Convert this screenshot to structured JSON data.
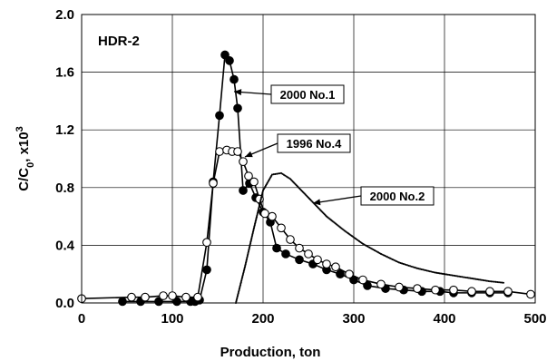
{
  "chart_data": {
    "type": "scatter",
    "panel_label": "HDR-2",
    "xlabel": "Production, ton",
    "ylabel_main": "C/C",
    "ylabel_sub": "0",
    "ylabel_tail": ", x10",
    "ylabel_sup": "3",
    "xlim": [
      0,
      500
    ],
    "ylim": [
      0,
      2.0
    ],
    "x_ticks": [
      "0",
      "100",
      "200",
      "300",
      "400",
      "500"
    ],
    "y_ticks": [
      "0.0",
      "0.4",
      "0.8",
      "1.2",
      "1.6",
      "2.0"
    ],
    "grid": true,
    "legend": "none",
    "annotations": [
      {
        "text": "2000 No.1",
        "series": 0
      },
      {
        "text": "1996 No.4",
        "series": 1
      },
      {
        "text": "2000 No.2",
        "series": 2
      }
    ],
    "series": [
      {
        "name": "2000 No.1",
        "marker": "filled-circle",
        "line": true,
        "color": "#000000",
        "x": [
          45,
          65,
          85,
          105,
          120,
          125,
          130,
          138,
          145,
          152,
          158,
          163,
          168,
          172,
          178,
          185,
          192,
          200,
          208,
          215,
          225,
          240,
          255,
          270,
          285,
          300,
          315,
          335,
          355,
          375,
          395,
          410,
          430,
          450,
          470
        ],
        "y": [
          0.01,
          0.01,
          0.01,
          0.01,
          0.01,
          0.01,
          0.02,
          0.23,
          0.84,
          1.3,
          1.72,
          1.68,
          1.55,
          1.35,
          0.78,
          0.83,
          0.73,
          0.63,
          0.56,
          0.38,
          0.34,
          0.3,
          0.27,
          0.23,
          0.2,
          0.16,
          0.12,
          0.1,
          0.09,
          0.08,
          0.08,
          0.07,
          0.07,
          0.07,
          0.07
        ]
      },
      {
        "name": "1996 No.4",
        "marker": "open-circle",
        "line": true,
        "color": "#000000",
        "x": [
          0,
          55,
          70,
          90,
          100,
          115,
          128,
          138,
          145,
          152,
          160,
          166,
          172,
          178,
          184,
          190,
          196,
          202,
          210,
          220,
          230,
          240,
          250,
          260,
          270,
          280,
          295,
          310,
          330,
          350,
          370,
          390,
          410,
          430,
          450,
          470,
          495
        ],
        "y": [
          0.03,
          0.04,
          0.04,
          0.05,
          0.05,
          0.04,
          0.04,
          0.42,
          0.83,
          1.05,
          1.06,
          1.05,
          1.05,
          0.98,
          0.88,
          0.84,
          0.72,
          0.62,
          0.6,
          0.52,
          0.44,
          0.38,
          0.34,
          0.3,
          0.27,
          0.25,
          0.2,
          0.16,
          0.13,
          0.11,
          0.1,
          0.09,
          0.09,
          0.08,
          0.08,
          0.08,
          0.06
        ]
      },
      {
        "name": "2000 No.2",
        "marker": "small-dot",
        "line": false,
        "color": "#000000",
        "x": [
          170,
          180,
          190,
          200,
          210,
          220,
          230,
          250,
          270,
          290,
          310,
          330,
          350,
          370,
          390,
          410,
          430,
          450,
          465
        ],
        "y": [
          0.0,
          0.25,
          0.52,
          0.78,
          0.89,
          0.9,
          0.86,
          0.73,
          0.6,
          0.5,
          0.41,
          0.34,
          0.28,
          0.24,
          0.21,
          0.19,
          0.17,
          0.15,
          0.14
        ]
      }
    ]
  }
}
